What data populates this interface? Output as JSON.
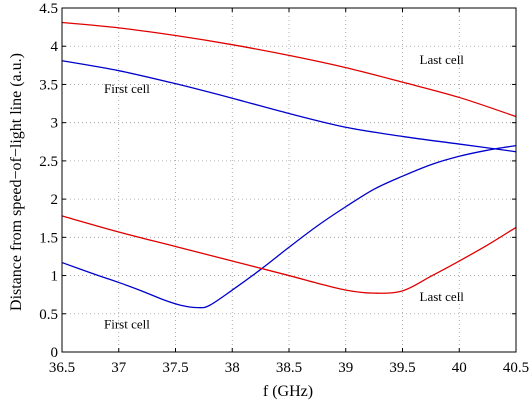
{
  "chart_data": {
    "type": "line",
    "xlabel": "f (GHz)",
    "ylabel": "Distance from speed−of−light line (a.u.)",
    "xlim": [
      36.5,
      40.5
    ],
    "ylim": [
      0,
      4.5
    ],
    "x_ticks": [
      "36.5",
      "37",
      "37.5",
      "38",
      "38.5",
      "39",
      "39.5",
      "40",
      "40.5"
    ],
    "y_ticks": [
      "0",
      "0.5",
      "1",
      "1.5",
      "2",
      "2.5",
      "3",
      "3.5",
      "4",
      "4.5"
    ],
    "grid": true,
    "colors": {
      "red": "#e00000",
      "blue": "#0000cc"
    },
    "series": [
      {
        "color": "red",
        "x": [
          36.5,
          37.0,
          37.5,
          38.0,
          38.5,
          39.0,
          39.5,
          40.0,
          40.5
        ],
        "y": [
          4.31,
          4.24,
          4.14,
          4.02,
          3.88,
          3.72,
          3.53,
          3.33,
          3.08
        ]
      },
      {
        "color": "blue",
        "x": [
          36.5,
          37.0,
          37.5,
          38.0,
          38.5,
          39.0,
          39.5,
          40.0,
          40.5
        ],
        "y": [
          3.81,
          3.68,
          3.51,
          3.32,
          3.12,
          2.94,
          2.82,
          2.72,
          2.62
        ]
      },
      {
        "color": "blue",
        "x": [
          36.5,
          36.8,
          37.0,
          37.2,
          37.4,
          37.55,
          37.7,
          37.8,
          38.0,
          38.25,
          38.5,
          38.75,
          39.0,
          39.25,
          39.5,
          39.75,
          40.0,
          40.25,
          40.5
        ],
        "y": [
          1.17,
          1.01,
          0.91,
          0.8,
          0.68,
          0.61,
          0.58,
          0.61,
          0.81,
          1.08,
          1.37,
          1.65,
          1.9,
          2.13,
          2.3,
          2.45,
          2.56,
          2.64,
          2.7
        ]
      },
      {
        "color": "red",
        "x": [
          36.5,
          37.0,
          37.5,
          38.0,
          38.5,
          38.75,
          39.0,
          39.25,
          39.5,
          39.75,
          40.0,
          40.25,
          40.5
        ],
        "y": [
          1.78,
          1.57,
          1.38,
          1.19,
          1.0,
          0.9,
          0.81,
          0.77,
          0.8,
          0.99,
          1.19,
          1.4,
          1.63
        ]
      }
    ],
    "annotations": [
      {
        "text": "Last cell",
        "x": 39.65,
        "y": 3.77
      },
      {
        "text": "First cell",
        "x": 36.87,
        "y": 3.39
      },
      {
        "text": "Last cell",
        "x": 39.65,
        "y": 0.67
      },
      {
        "text": "First cell",
        "x": 36.87,
        "y": 0.31
      }
    ]
  }
}
